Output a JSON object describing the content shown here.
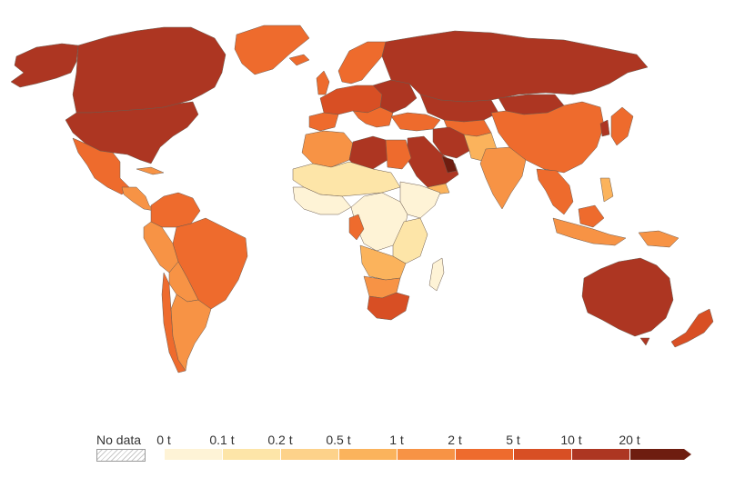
{
  "legend": {
    "no_data_label": "No data",
    "ticks": [
      "0 t",
      "0.1 t",
      "0.2 t",
      "0.5 t",
      "1 t",
      "2 t",
      "5 t",
      "10 t",
      "20 t"
    ],
    "bin_colors": [
      "#fef3d6",
      "#fde5a8",
      "#fdd28a",
      "#fbb35c",
      "#f79345",
      "#ee6b2d",
      "#d84f24",
      "#ad3622",
      "#6e1d10"
    ]
  },
  "colors": {
    "ocean": "#ffffff",
    "border": "#6b5a4e"
  }
}
